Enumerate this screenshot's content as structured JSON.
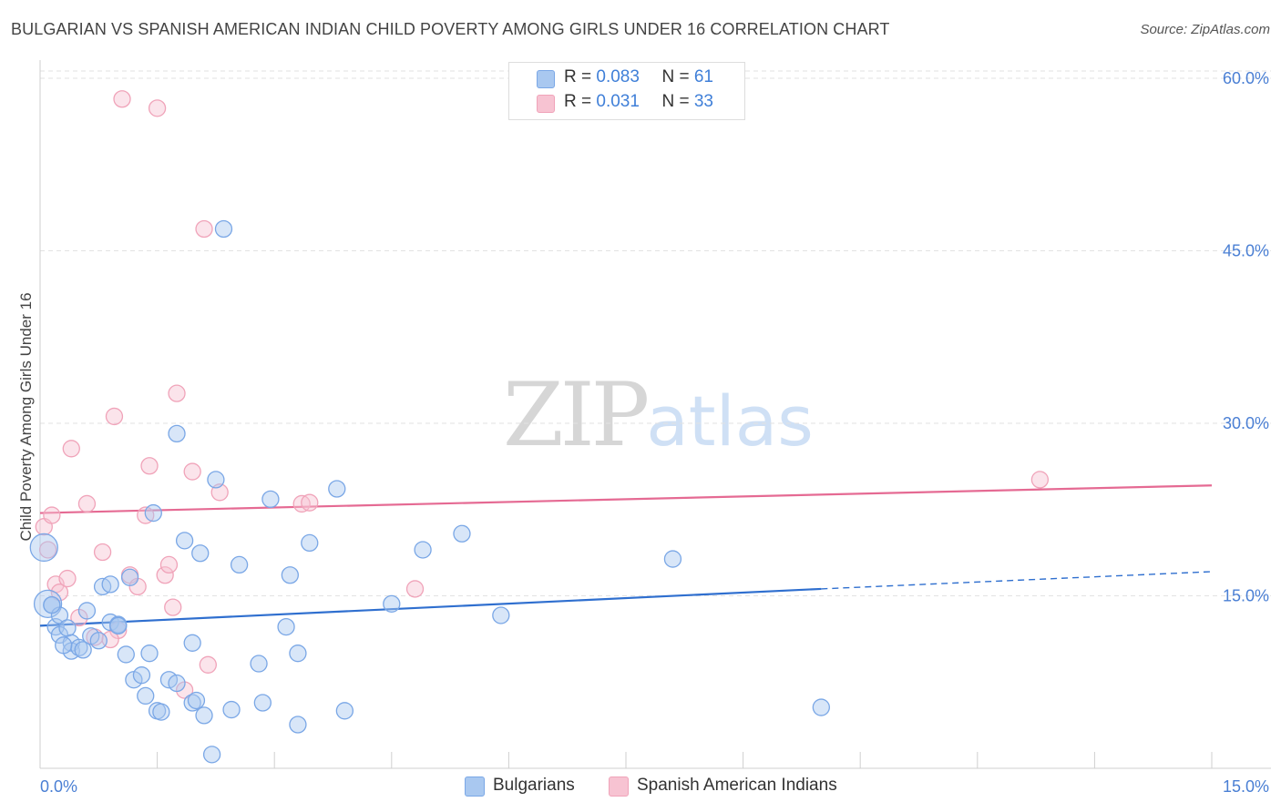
{
  "title": "BULGARIAN VS SPANISH AMERICAN INDIAN CHILD POVERTY AMONG GIRLS UNDER 16 CORRELATION CHART",
  "source": "Source: ZipAtlas.com",
  "watermark": {
    "zip": "ZIP",
    "atlas": "atlas"
  },
  "legend_top": {
    "rows": [
      {
        "r_label": "R = ",
        "r_value": "0.083",
        "n_label": "N = ",
        "n_value": "61"
      },
      {
        "r_label": "R = ",
        "r_value": "0.031",
        "n_label": "N = ",
        "n_value": "33"
      }
    ]
  },
  "chart_data": {
    "type": "scatter",
    "title": "BULGARIAN VS SPANISH AMERICAN INDIAN CHILD POVERTY AMONG GIRLS UNDER 16 CORRELATION CHART",
    "xlabel": "",
    "ylabel": "Child Poverty Among Girls Under 16",
    "xlim": [
      0,
      15
    ],
    "ylim": [
      0,
      60
    ],
    "x_tick_labels": [
      "0.0%",
      "15.0%"
    ],
    "y_ticks": [
      15,
      30,
      45,
      60
    ],
    "y_tick_labels": [
      "15.0%",
      "30.0%",
      "45.0%",
      "60.0%"
    ],
    "grid": true,
    "legend_position": "bottom",
    "series": [
      {
        "name": "Bulgarians",
        "color": "#7aa7e6",
        "fill": "#a9c8f0",
        "trend": {
          "x0": 0,
          "y0": 12.4,
          "x1": 10.0,
          "y1": 15.6,
          "dash_to_x": 15.0,
          "dash_to_y": 17.1
        },
        "points": [
          [
            0.05,
            19.2
          ],
          [
            0.1,
            14.3
          ],
          [
            0.15,
            14.2
          ],
          [
            0.2,
            12.3
          ],
          [
            0.25,
            11.6
          ],
          [
            0.25,
            13.3
          ],
          [
            0.35,
            12.2
          ],
          [
            0.4,
            10.9
          ],
          [
            0.4,
            10.2
          ],
          [
            0.5,
            10.5
          ],
          [
            0.55,
            10.3
          ],
          [
            0.6,
            13.7
          ],
          [
            0.65,
            11.5
          ],
          [
            0.75,
            11.1
          ],
          [
            0.8,
            15.8
          ],
          [
            0.9,
            16.0
          ],
          [
            0.9,
            12.7
          ],
          [
            1.0,
            12.5
          ],
          [
            1.0,
            12.4
          ],
          [
            1.1,
            9.9
          ],
          [
            1.15,
            16.6
          ],
          [
            1.2,
            7.7
          ],
          [
            1.3,
            8.1
          ],
          [
            1.35,
            6.3
          ],
          [
            1.4,
            10.0
          ],
          [
            1.45,
            22.2
          ],
          [
            1.5,
            5.0
          ],
          [
            1.55,
            4.9
          ],
          [
            1.65,
            7.7
          ],
          [
            1.75,
            29.1
          ],
          [
            1.75,
            7.4
          ],
          [
            1.85,
            19.8
          ],
          [
            1.95,
            10.9
          ],
          [
            1.95,
            5.7
          ],
          [
            2.0,
            5.9
          ],
          [
            2.05,
            18.7
          ],
          [
            2.1,
            4.6
          ],
          [
            2.2,
            1.2
          ],
          [
            2.25,
            25.1
          ],
          [
            2.35,
            46.9
          ],
          [
            2.45,
            5.1
          ],
          [
            2.55,
            17.7
          ],
          [
            2.8,
            9.1
          ],
          [
            2.85,
            5.7
          ],
          [
            2.95,
            23.4
          ],
          [
            3.15,
            12.3
          ],
          [
            3.2,
            16.8
          ],
          [
            3.3,
            10.0
          ],
          [
            3.3,
            3.8
          ],
          [
            3.45,
            19.6
          ],
          [
            3.8,
            24.3
          ],
          [
            3.9,
            5.0
          ],
          [
            4.5,
            14.3
          ],
          [
            4.9,
            19.0
          ],
          [
            5.4,
            20.4
          ],
          [
            5.9,
            13.3
          ],
          [
            8.1,
            18.2
          ],
          [
            10.0,
            5.3
          ],
          [
            0.15,
            14.2
          ],
          [
            0.3,
            10.7
          ],
          [
            1.0,
            12.4
          ]
        ]
      },
      {
        "name": "Spanish American Indians",
        "color": "#f0a3b9",
        "fill": "#f7c3d2",
        "trend": {
          "x0": 0,
          "y0": 22.2,
          "x1": 15.0,
          "y1": 24.6
        },
        "points": [
          [
            0.05,
            21.0
          ],
          [
            0.1,
            19.0
          ],
          [
            0.15,
            22.0
          ],
          [
            0.2,
            16.0
          ],
          [
            0.25,
            15.3
          ],
          [
            0.35,
            16.5
          ],
          [
            0.4,
            27.8
          ],
          [
            0.5,
            13.1
          ],
          [
            0.6,
            23.0
          ],
          [
            0.7,
            11.4
          ],
          [
            0.8,
            18.8
          ],
          [
            0.95,
            30.6
          ],
          [
            1.0,
            12.0
          ],
          [
            1.05,
            58.2
          ],
          [
            1.15,
            16.8
          ],
          [
            1.25,
            15.8
          ],
          [
            1.35,
            22.0
          ],
          [
            1.4,
            26.3
          ],
          [
            1.5,
            57.4
          ],
          [
            1.6,
            16.8
          ],
          [
            1.65,
            17.7
          ],
          [
            1.7,
            14.0
          ],
          [
            1.75,
            32.6
          ],
          [
            1.85,
            6.8
          ],
          [
            1.95,
            25.8
          ],
          [
            2.1,
            46.9
          ],
          [
            2.15,
            9.0
          ],
          [
            2.3,
            24.0
          ],
          [
            3.35,
            23.0
          ],
          [
            3.45,
            23.1
          ],
          [
            4.8,
            15.6
          ],
          [
            12.8,
            25.1
          ],
          [
            0.9,
            11.2
          ]
        ]
      }
    ]
  }
}
